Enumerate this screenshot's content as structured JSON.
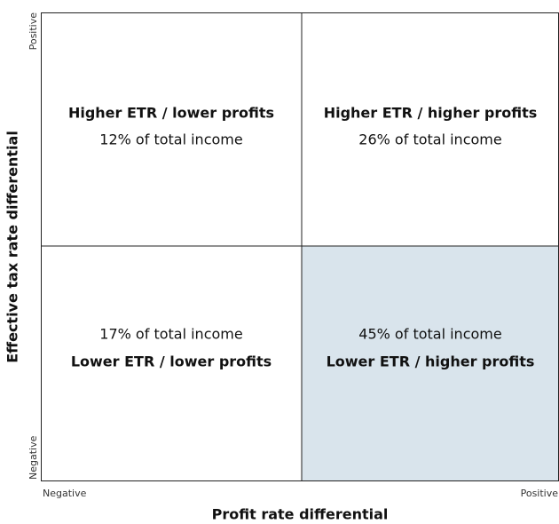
{
  "y_axis": {
    "label": "Effective tax rate differential",
    "high": "Positive",
    "low": "Negative"
  },
  "x_axis": {
    "label": "Profit rate differential",
    "low": "Negative",
    "high": "Positive"
  },
  "quadrants": [
    {
      "title": "Higher ETR / lower profits",
      "text": "12% of total income"
    },
    {
      "title": "Higher ETR / higher profits",
      "text": "26% of total income"
    },
    {
      "title": "Lower ETR / lower profits",
      "text": "17% of total income"
    },
    {
      "title": "Lower ETR / higher profits",
      "text": "45% of total income"
    }
  ]
}
